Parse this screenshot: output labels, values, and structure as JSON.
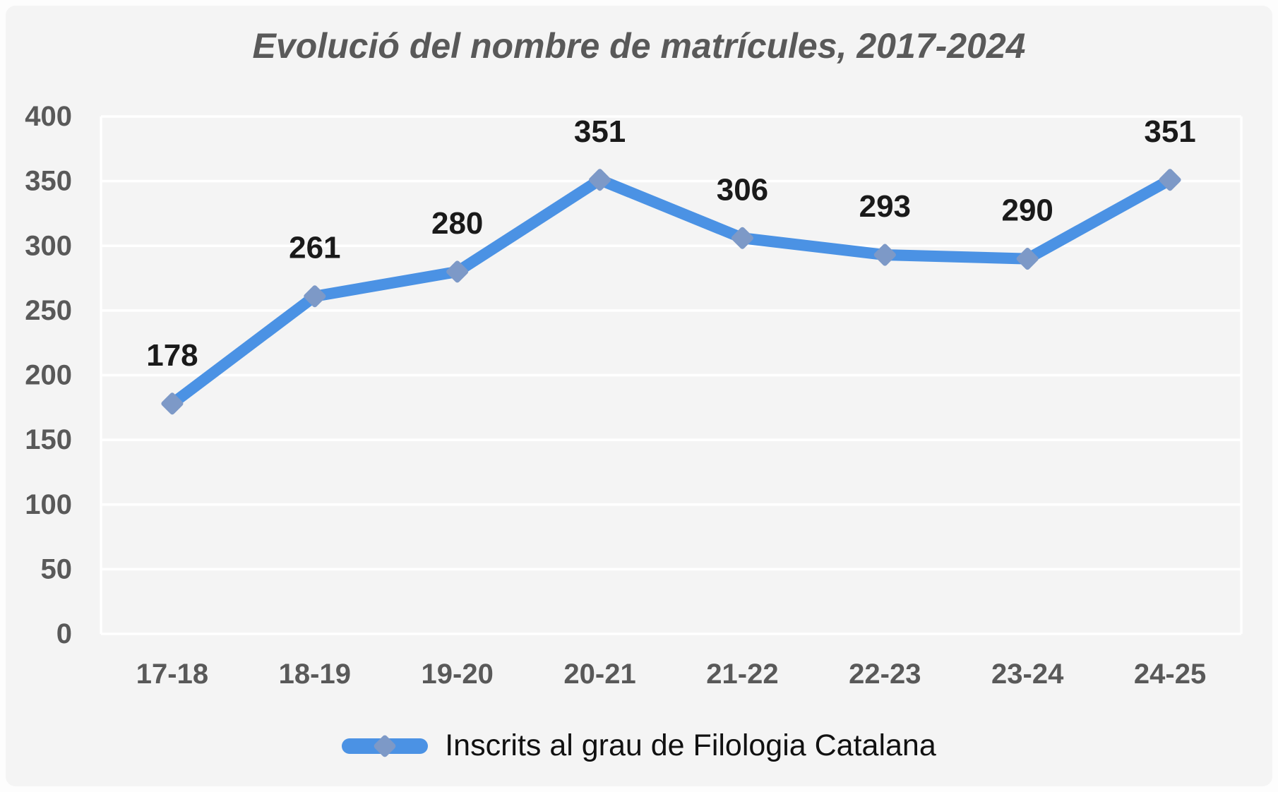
{
  "chart_data": {
    "type": "line",
    "title": "Evolució del nombre de matrícules, 2017-2024",
    "categories": [
      "17-18",
      "18-19",
      "19-20",
      "20-21",
      "21-22",
      "22-23",
      "23-24",
      "24-25"
    ],
    "series": [
      {
        "name": "Inscrits al grau de Filologia Catalana",
        "values": [
          178,
          261,
          280,
          351,
          306,
          293,
          290,
          351
        ],
        "marker": "diamond",
        "data_labels": true
      }
    ],
    "xlabel": "",
    "ylabel": "",
    "ylim": [
      0,
      400
    ],
    "ytick_step": 50,
    "grid": {
      "horizontal": true,
      "vertical": false
    },
    "legend_position": "bottom-center",
    "colors": {
      "line": "#4b92e4",
      "marker": "#7d99c7",
      "background": "#f4f4f4",
      "gridline": "#ffffff",
      "axis_text": "#595959",
      "title_text": "#595959",
      "data_label_text": "#1a1a1a",
      "legend_text": "#111111"
    }
  }
}
